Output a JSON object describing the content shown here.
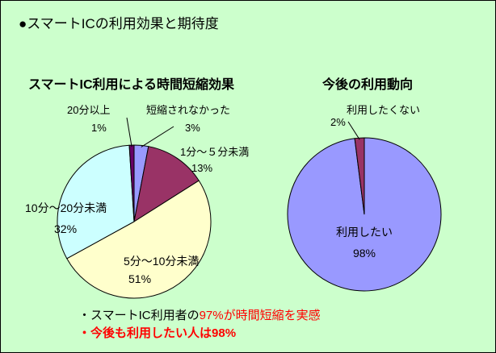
{
  "title": {
    "bullet": "●",
    "text": "スマートICの利用効果と期待度"
  },
  "colors": {
    "background": "#ccffcc",
    "slice_periwinkle": "#9999ff",
    "slice_plum": "#993366",
    "slice_cream": "#ffffcc",
    "slice_lightcyan": "#ccffff",
    "slice_darkpurple": "#660066",
    "emphasis_red": "#ff0000"
  },
  "chart_data": [
    {
      "type": "pie",
      "title": "スマートIC利用による時間短縮効果",
      "start_angle_deg": 0,
      "direction": "clockwise",
      "slices": [
        {
          "label": "短縮されなかった",
          "value": 3,
          "display": "3%",
          "color": "#9999ff"
        },
        {
          "label": "1分～５分未満",
          "value": 13,
          "display": "13%",
          "color": "#993366"
        },
        {
          "label": "5分～10分未満",
          "value": 51,
          "display": "51%",
          "color": "#ffffcc"
        },
        {
          "label": "10分～20分未満",
          "value": 32,
          "display": "32%",
          "color": "#ccffff"
        },
        {
          "label": "20分以上",
          "value": 1,
          "display": "1%",
          "color": "#660066"
        }
      ]
    },
    {
      "type": "pie",
      "title": "今後の利用動向",
      "start_angle_deg": 0,
      "direction": "clockwise",
      "slices": [
        {
          "label": "利用したい",
          "value": 98,
          "display": "98%",
          "color": "#9999ff"
        },
        {
          "label": "利用したくない",
          "value": 2,
          "display": "2%",
          "color": "#993366"
        }
      ]
    }
  ],
  "summary": {
    "line1": {
      "bullet": "・",
      "prefix": "スマートIC利用者の",
      "highlight": "97%が時間短縮を実感"
    },
    "line2": {
      "bullet": "・",
      "text": "今後も利用したい人は98%"
    }
  }
}
